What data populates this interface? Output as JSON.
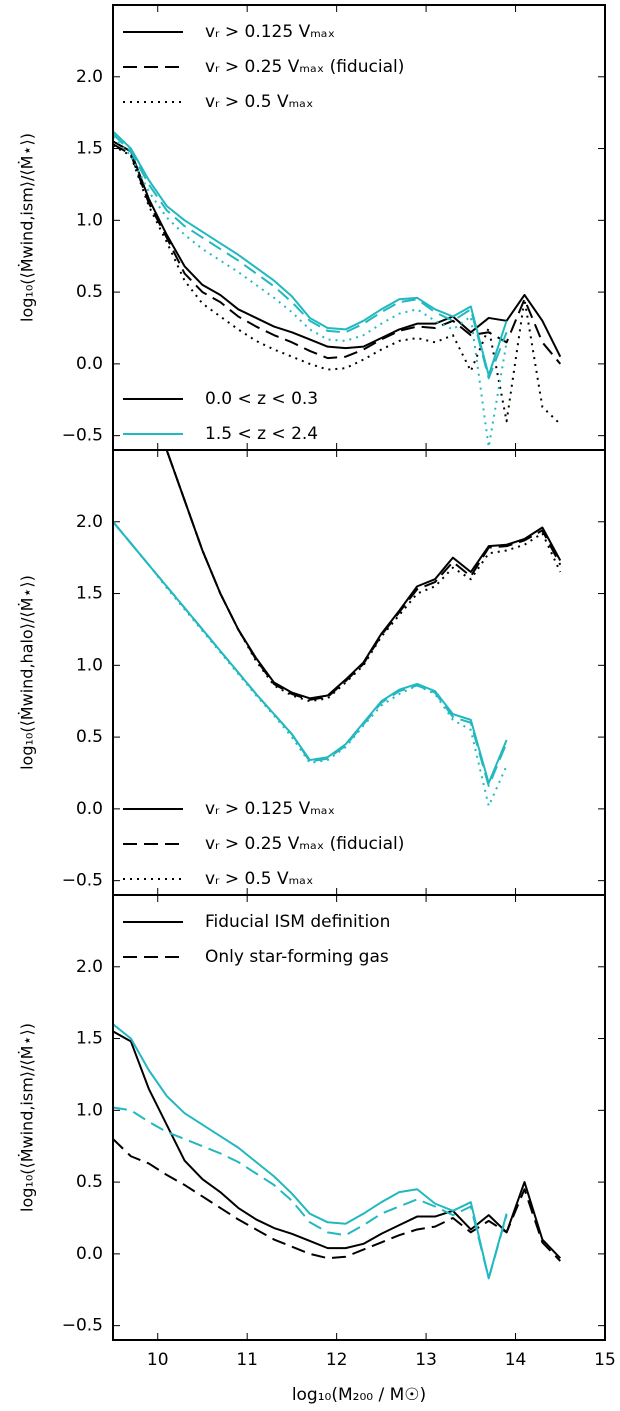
{
  "chart_data": [
    {
      "type": "line",
      "ylabel": "log₁₀(⟨Ṁwind,ism⟩/⟨Ṁ⋆⟩)",
      "x": [
        9.5,
        9.7,
        9.9,
        10.1,
        10.3,
        10.5,
        10.7,
        10.9,
        11.1,
        11.3,
        11.5,
        11.7,
        11.9,
        12.1,
        12.3,
        12.5,
        12.7,
        12.9,
        13.1,
        13.3,
        13.5,
        13.7,
        13.9,
        14.1,
        14.3,
        14.5
      ],
      "xlim": [
        9.5,
        15
      ],
      "xticks": [
        10,
        11,
        12,
        13,
        14,
        15
      ],
      "ylim": [
        -0.6,
        2.5
      ],
      "yticks": [
        {
          "value": -0.5,
          "label": "−0.5"
        },
        {
          "value": 0,
          "label": "0.0"
        },
        {
          "value": 0.5,
          "label": "0.5"
        },
        {
          "value": 1,
          "label": "1.0"
        },
        {
          "value": 1.5,
          "label": "1.5"
        },
        {
          "value": 2,
          "label": "2.0"
        }
      ],
      "series": [
        {
          "color": "#000000",
          "linestyle": "solid",
          "values": [
            1.55,
            1.48,
            1.15,
            0.9,
            0.68,
            0.55,
            0.48,
            0.38,
            0.32,
            0.26,
            0.22,
            0.17,
            0.12,
            0.11,
            0.12,
            0.18,
            0.24,
            0.28,
            0.28,
            0.33,
            0.22,
            0.32,
            0.3,
            0.48,
            0.3,
            0.05
          ]
        },
        {
          "color": "#000000",
          "linestyle": "dashed",
          "values": [
            1.53,
            1.46,
            1.12,
            0.88,
            0.63,
            0.5,
            0.43,
            0.33,
            0.26,
            0.2,
            0.15,
            0.09,
            0.04,
            0.05,
            0.1,
            0.17,
            0.23,
            0.26,
            0.25,
            0.3,
            0.2,
            0.22,
            0.15,
            0.45,
            0.15,
            0.0
          ]
        },
        {
          "color": "#000000",
          "linestyle": "dotted",
          "values": [
            1.52,
            1.45,
            1.1,
            0.85,
            0.58,
            0.42,
            0.33,
            0.24,
            0.16,
            0.1,
            0.05,
            0.0,
            -0.04,
            -0.03,
            0.03,
            0.1,
            0.16,
            0.18,
            0.15,
            0.2,
            -0.05,
            0.25,
            -0.4,
            0.45,
            -0.3,
            -0.42
          ]
        },
        {
          "color": "#22b8bf",
          "linestyle": "solid",
          "values": [
            1.62,
            1.5,
            1.28,
            1.1,
            1.0,
            0.92,
            0.84,
            0.76,
            0.67,
            0.58,
            0.47,
            0.32,
            0.25,
            0.24,
            0.3,
            0.38,
            0.45,
            0.46,
            0.38,
            0.33,
            0.4,
            -0.08,
            0.3,
            null,
            null,
            null
          ]
        },
        {
          "color": "#22b8bf",
          "linestyle": "dashed",
          "values": [
            1.6,
            1.48,
            1.25,
            1.07,
            0.96,
            0.88,
            0.8,
            0.72,
            0.63,
            0.54,
            0.43,
            0.3,
            0.23,
            0.22,
            0.28,
            0.36,
            0.43,
            0.45,
            0.36,
            0.3,
            0.38,
            -0.1,
            0.22,
            null,
            null,
            null
          ]
        },
        {
          "color": "#22b8bf",
          "linestyle": "dotted",
          "values": [
            1.58,
            1.45,
            1.2,
            1.02,
            0.9,
            0.8,
            0.72,
            0.64,
            0.55,
            0.46,
            0.36,
            0.24,
            0.17,
            0.16,
            0.2,
            0.28,
            0.35,
            0.38,
            0.3,
            0.24,
            0.33,
            -0.58,
            0.15,
            null,
            null,
            null
          ]
        }
      ],
      "legends": [
        {
          "loc": "upper left",
          "entries": [
            {
              "label": "vᵣ > 0.125 Vₘₐₓ",
              "linestyle": "solid",
              "color": "#000000"
            },
            {
              "label": "vᵣ > 0.25 Vₘₐₓ (fiducial)",
              "linestyle": "dashed",
              "color": "#000000"
            },
            {
              "label": "vᵣ > 0.5 Vₘₐₓ",
              "linestyle": "dotted",
              "color": "#000000"
            }
          ]
        },
        {
          "loc": "lower left",
          "entries": [
            {
              "label": "0.0 < z < 0.3",
              "linestyle": "solid",
              "color": "#000000"
            },
            {
              "label": "1.5 < z < 2.4",
              "linestyle": "solid",
              "color": "#22b8bf"
            }
          ]
        }
      ]
    },
    {
      "type": "line",
      "ylabel": "log₁₀(⟨Ṁwind,halo⟩/⟨Ṁ⋆⟩)",
      "x": [
        9.5,
        9.7,
        9.9,
        10.1,
        10.3,
        10.5,
        10.7,
        10.9,
        11.1,
        11.3,
        11.5,
        11.7,
        11.9,
        12.1,
        12.3,
        12.5,
        12.7,
        12.9,
        13.1,
        13.3,
        13.5,
        13.7,
        13.9,
        14.1,
        14.3,
        14.5
      ],
      "xlim": [
        9.5,
        15
      ],
      "xticks": [
        10,
        11,
        12,
        13,
        14,
        15
      ],
      "ylim": [
        -0.6,
        2.5
      ],
      "yticks": [
        {
          "value": -0.5,
          "label": "−0.5"
        },
        {
          "value": 0,
          "label": "0.0"
        },
        {
          "value": 0.5,
          "label": "0.5"
        },
        {
          "value": 1,
          "label": "1.0"
        },
        {
          "value": 1.5,
          "label": "1.5"
        },
        {
          "value": 2,
          "label": "2.0"
        }
      ],
      "series": [
        {
          "color": "#000000",
          "linestyle": "solid",
          "values": [
            null,
            null,
            2.9,
            2.5,
            2.15,
            1.8,
            1.5,
            1.25,
            1.05,
            0.88,
            0.81,
            0.77,
            0.79,
            0.9,
            1.02,
            1.22,
            1.38,
            1.55,
            1.6,
            1.75,
            1.65,
            1.83,
            1.84,
            1.88,
            1.96,
            1.73
          ]
        },
        {
          "color": "#000000",
          "linestyle": "dashed",
          "values": [
            null,
            null,
            2.9,
            2.5,
            2.15,
            1.8,
            1.5,
            1.25,
            1.04,
            0.87,
            0.8,
            0.76,
            0.78,
            0.89,
            1.01,
            1.21,
            1.37,
            1.53,
            1.58,
            1.72,
            1.62,
            1.82,
            1.83,
            1.87,
            1.94,
            1.7
          ]
        },
        {
          "color": "#000000",
          "linestyle": "dotted",
          "values": [
            null,
            null,
            2.9,
            2.5,
            2.15,
            1.8,
            1.5,
            1.25,
            1.03,
            0.86,
            0.79,
            0.75,
            0.77,
            0.88,
            1.0,
            1.2,
            1.35,
            1.5,
            1.55,
            1.68,
            1.6,
            1.78,
            1.8,
            1.84,
            1.92,
            1.65
          ]
        },
        {
          "color": "#22b8bf",
          "linestyle": "solid",
          "values": [
            2.0,
            1.85,
            1.7,
            1.55,
            1.4,
            1.25,
            1.1,
            0.95,
            0.8,
            0.66,
            0.52,
            0.34,
            0.36,
            0.45,
            0.6,
            0.75,
            0.83,
            0.87,
            0.82,
            0.66,
            0.62,
            0.18,
            0.48,
            null,
            null,
            null
          ]
        },
        {
          "color": "#22b8bf",
          "linestyle": "dashed",
          "values": [
            2.0,
            1.85,
            1.7,
            1.55,
            1.4,
            1.25,
            1.1,
            0.95,
            0.8,
            0.66,
            0.52,
            0.33,
            0.35,
            0.44,
            0.59,
            0.74,
            0.82,
            0.86,
            0.81,
            0.64,
            0.6,
            0.16,
            0.46,
            null,
            null,
            null
          ]
        },
        {
          "color": "#22b8bf",
          "linestyle": "dotted",
          "values": [
            2.0,
            1.85,
            1.7,
            1.54,
            1.39,
            1.24,
            1.09,
            0.94,
            0.79,
            0.65,
            0.5,
            0.32,
            0.34,
            0.43,
            0.58,
            0.72,
            0.8,
            0.86,
            0.8,
            0.62,
            0.55,
            0.02,
            0.3,
            null,
            null,
            null
          ]
        }
      ],
      "legends": [
        {
          "loc": "lower left",
          "entries": [
            {
              "label": "vᵣ > 0.125 Vₘₐₓ",
              "linestyle": "solid",
              "color": "#000000"
            },
            {
              "label": "vᵣ > 0.25 Vₘₐₓ (fiducial)",
              "linestyle": "dashed",
              "color": "#000000"
            },
            {
              "label": "vᵣ > 0.5 Vₘₐₓ",
              "linestyle": "dotted",
              "color": "#000000"
            }
          ]
        }
      ]
    },
    {
      "type": "line",
      "ylabel": "log₁₀(⟨Ṁwind,ism⟩/⟨Ṁ⋆⟩)",
      "xlabel": "log₁₀(M₂₀₀ / M☉)",
      "x": [
        9.5,
        9.7,
        9.9,
        10.1,
        10.3,
        10.5,
        10.7,
        10.9,
        11.1,
        11.3,
        11.5,
        11.7,
        11.9,
        12.1,
        12.3,
        12.5,
        12.7,
        12.9,
        13.1,
        13.3,
        13.5,
        13.7,
        13.9,
        14.1,
        14.3,
        14.5
      ],
      "xlim": [
        9.5,
        15
      ],
      "xticks": [
        10,
        11,
        12,
        13,
        14,
        15
      ],
      "ylim": [
        -0.6,
        2.5
      ],
      "yticks": [
        {
          "value": -0.5,
          "label": "−0.5"
        },
        {
          "value": 0,
          "label": "0.0"
        },
        {
          "value": 0.5,
          "label": "0.5"
        },
        {
          "value": 1,
          "label": "1.0"
        },
        {
          "value": 1.5,
          "label": "1.5"
        },
        {
          "value": 2,
          "label": "2.0"
        }
      ],
      "series": [
        {
          "color": "#000000",
          "linestyle": "solid",
          "values": [
            1.55,
            1.48,
            1.15,
            0.9,
            0.65,
            0.52,
            0.43,
            0.32,
            0.24,
            0.18,
            0.14,
            0.09,
            0.04,
            0.04,
            0.07,
            0.14,
            0.2,
            0.26,
            0.26,
            0.3,
            0.17,
            0.27,
            0.15,
            0.5,
            0.1,
            -0.03
          ]
        },
        {
          "color": "#000000",
          "linestyle": "dashed",
          "values": [
            0.8,
            0.68,
            0.63,
            0.55,
            0.48,
            0.4,
            0.32,
            0.24,
            0.17,
            0.1,
            0.05,
            0.0,
            -0.03,
            -0.02,
            0.03,
            0.08,
            0.13,
            0.17,
            0.19,
            0.25,
            0.15,
            0.23,
            0.15,
            0.45,
            0.08,
            -0.05
          ]
        },
        {
          "color": "#22b8bf",
          "linestyle": "solid",
          "values": [
            1.6,
            1.5,
            1.28,
            1.1,
            0.98,
            0.9,
            0.82,
            0.74,
            0.64,
            0.54,
            0.42,
            0.28,
            0.22,
            0.21,
            0.28,
            0.36,
            0.43,
            0.45,
            0.35,
            0.3,
            0.36,
            -0.17,
            0.28,
            null,
            null,
            null
          ]
        },
        {
          "color": "#22b8bf",
          "linestyle": "dashed",
          "values": [
            1.02,
            1.0,
            0.92,
            0.85,
            0.8,
            0.75,
            0.7,
            0.64,
            0.56,
            0.48,
            0.37,
            0.22,
            0.15,
            0.13,
            0.2,
            0.28,
            0.33,
            0.38,
            0.33,
            0.27,
            0.33,
            -0.17,
            0.27,
            null,
            null,
            null
          ]
        }
      ],
      "legends": [
        {
          "loc": "upper left",
          "entries": [
            {
              "label": "Fiducial ISM definition",
              "linestyle": "solid",
              "color": "#000000"
            },
            {
              "label": "Only star-forming gas",
              "linestyle": "dashed",
              "color": "#000000"
            }
          ]
        }
      ]
    }
  ]
}
